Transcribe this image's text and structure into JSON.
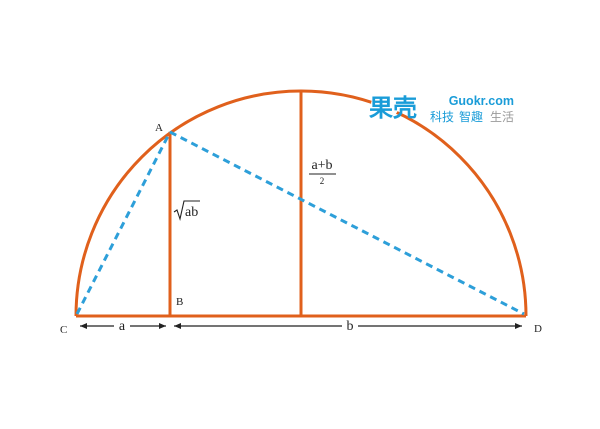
{
  "colors": {
    "background": "#ffffff",
    "figure_stroke": "#e0601c",
    "dashed_stroke": "#2d9fd9",
    "text": "#222222",
    "brand_blue": "#1a9cd8",
    "brand_green": "#8ab82e",
    "logo_gray": "#9a9a9a"
  },
  "points": {
    "A": "A",
    "B": "B",
    "C": "C",
    "D": "D"
  },
  "labels": {
    "segment_a": "a",
    "segment_b": "b",
    "geometric_mean": "ab",
    "am_numerator": "a+b",
    "am_denominator": "2"
  },
  "logo": {
    "mark": "果壳",
    "domain": "Guokr.com",
    "tagline_1": "科技",
    "tagline_2": "智趣",
    "tagline_3": "生活"
  },
  "icons": {
    "logo_mark": "guokr-logo-icon",
    "arrow": "double-arrow-icon",
    "radical": "square-root-icon"
  }
}
